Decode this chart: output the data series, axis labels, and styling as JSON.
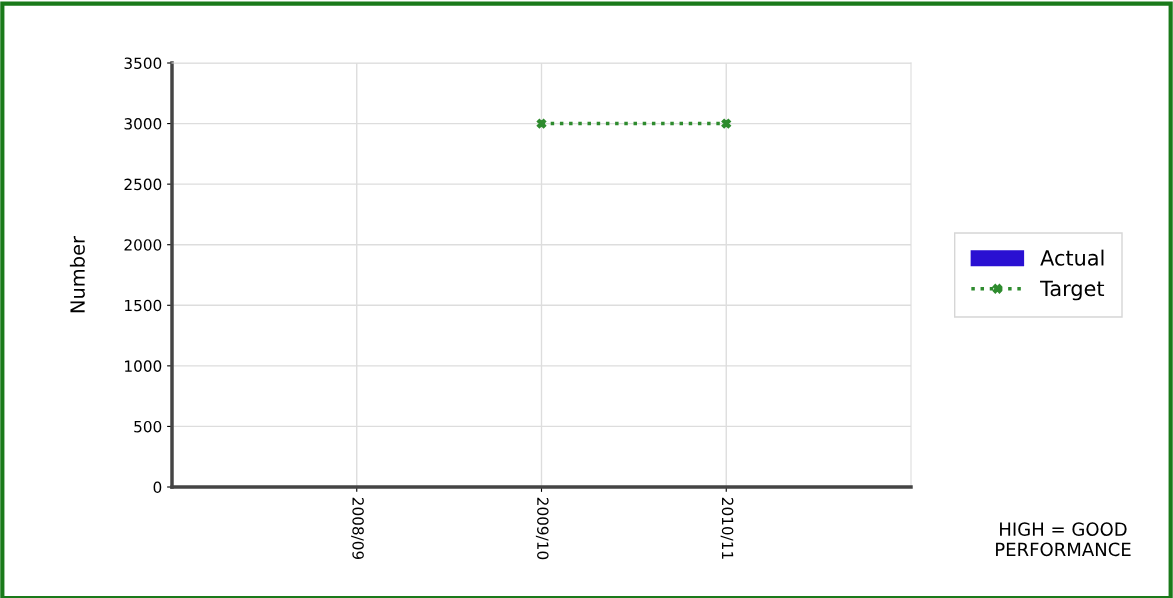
{
  "chart_data": {
    "type": "bar",
    "ylabel": "Number",
    "categories": [
      "2008/09",
      "2009/10",
      "2010/11"
    ],
    "series": [
      {
        "name": "Actual",
        "color": "#2a10d2",
        "values": [
          null,
          null,
          null
        ]
      },
      {
        "name": "Target",
        "type": "line",
        "color": "#2e8b2e",
        "values": [
          null,
          3000,
          3000
        ],
        "marker": "cross",
        "line_style": "dotted"
      }
    ],
    "ylim": [
      0,
      3500
    ],
    "yticks": [
      0,
      500,
      1000,
      1500,
      2000,
      2500,
      3000,
      3500
    ],
    "grid": true,
    "legend": "right",
    "annotations": [
      "HIGH = GOOD PERFORMANCE"
    ]
  }
}
